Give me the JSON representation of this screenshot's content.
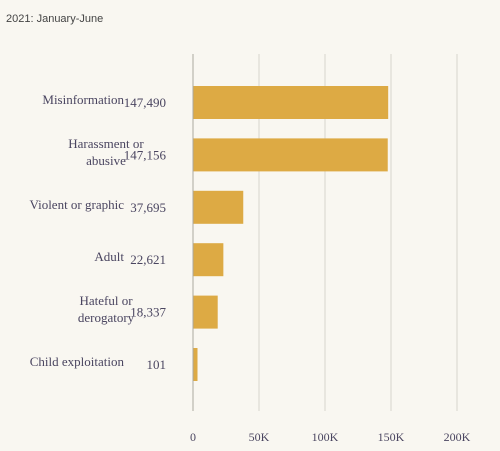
{
  "chart_data": {
    "type": "bar",
    "orientation": "horizontal",
    "subtitle": "2021: January-June",
    "categories": [
      [
        "Misinformation"
      ],
      [
        "Harassment or",
        "abusive"
      ],
      [
        "Violent or graphic"
      ],
      [
        "Adult"
      ],
      [
        "Hateful or",
        "derogatory"
      ],
      [
        "Child exploitation"
      ]
    ],
    "values": [
      147490,
      147156,
      37695,
      22621,
      18337,
      101
    ],
    "value_labels": [
      "147,490",
      "147,156",
      "37,695",
      "22,621",
      "18,337",
      "101"
    ],
    "xlim": [
      0,
      200000
    ],
    "ticks": [
      0,
      50000,
      100000,
      150000,
      200000
    ],
    "tick_labels": [
      "0",
      "50K",
      "100K",
      "150K",
      "200K"
    ],
    "grid": true,
    "legend": "none",
    "bar_color": "#ddaa44"
  }
}
